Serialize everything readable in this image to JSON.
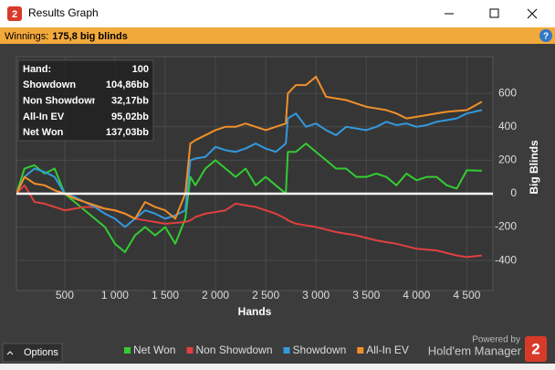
{
  "window": {
    "title": "Results Graph",
    "icon": "2"
  },
  "status": {
    "label": "Winnings:",
    "value": "175,8 big blinds"
  },
  "help": "?",
  "info_box": {
    "rows": [
      [
        "Hand:",
        "100"
      ],
      [
        "Showdown",
        "104,86bb"
      ],
      [
        "Non Showdown",
        "32,17bb"
      ],
      [
        "All-In EV",
        "95,02bb"
      ],
      [
        "Net Won",
        "137,03bb"
      ]
    ]
  },
  "footer": {
    "options": "Options",
    "powered_by": "Powered by",
    "brand": "Hold'em Manager",
    "brand_icon": "2"
  },
  "chart_data": {
    "type": "line",
    "xlabel": "Hands",
    "ylabel": "Big Blinds",
    "xlim": [
      20,
      4760
    ],
    "ylim": [
      -580,
      820
    ],
    "xticks": [
      500,
      {
        "value": 1000,
        "label": "1 000"
      },
      {
        "value": 1500,
        "label": "1 500"
      },
      {
        "value": 2000,
        "label": "2 000"
      },
      {
        "value": 2500,
        "label": "2 500"
      },
      {
        "value": 3000,
        "label": "3 000"
      },
      {
        "value": 3500,
        "label": "3 500"
      },
      {
        "value": 4000,
        "label": "4 000"
      },
      {
        "value": 4500,
        "label": "4 500"
      }
    ],
    "yticks": [
      -400,
      -200,
      0,
      200,
      400,
      600
    ],
    "grid": true,
    "x": [
      20,
      100,
      200,
      300,
      400,
      500,
      600,
      700,
      800,
      900,
      1000,
      1100,
      1200,
      1300,
      1400,
      1500,
      1600,
      1700,
      1750,
      1800,
      1900,
      2000,
      2100,
      2200,
      2300,
      2400,
      2500,
      2600,
      2700,
      2720,
      2800,
      2900,
      3000,
      3100,
      3200,
      3300,
      3400,
      3500,
      3600,
      3700,
      3800,
      3900,
      4000,
      4100,
      4200,
      4300,
      4400,
      4500,
      4650
    ],
    "series": [
      {
        "name": "Net Won",
        "color": "#33cc33",
        "values": [
          0,
          150,
          170,
          120,
          150,
          0,
          -50,
          -100,
          -150,
          -200,
          -300,
          -350,
          -250,
          -200,
          -250,
          -200,
          -300,
          -150,
          100,
          50,
          150,
          200,
          150,
          100,
          150,
          50,
          100,
          50,
          0,
          250,
          250,
          300,
          250,
          200,
          150,
          150,
          100,
          100,
          120,
          100,
          50,
          120,
          80,
          100,
          100,
          50,
          30,
          140,
          137
        ]
      },
      {
        "name": "Non Showdown",
        "color": "#e04040",
        "values": [
          0,
          50,
          -50,
          -60,
          -80,
          -100,
          -90,
          -80,
          -80,
          -90,
          -100,
          -120,
          -150,
          -160,
          -170,
          -180,
          -175,
          -170,
          -160,
          -140,
          -120,
          -110,
          -100,
          -60,
          -70,
          -80,
          -100,
          -120,
          -150,
          -160,
          -180,
          -190,
          -200,
          -215,
          -230,
          -240,
          -250,
          -265,
          -280,
          -290,
          -300,
          -315,
          -330,
          -335,
          -340,
          -355,
          -370,
          -380,
          -370
        ]
      },
      {
        "name": "Showdown",
        "color": "#3399dd",
        "values": [
          0,
          100,
          150,
          130,
          100,
          0,
          -20,
          -50,
          -80,
          -120,
          -150,
          -200,
          -150,
          -100,
          -120,
          -150,
          -130,
          -100,
          200,
          210,
          220,
          280,
          260,
          250,
          270,
          300,
          270,
          250,
          300,
          450,
          480,
          400,
          420,
          380,
          350,
          400,
          390,
          380,
          400,
          430,
          410,
          420,
          400,
          410,
          430,
          440,
          450,
          480,
          500
        ]
      },
      {
        "name": "All-In EV",
        "color": "#f0902a",
        "values": [
          0,
          100,
          60,
          50,
          20,
          0,
          -30,
          -50,
          -70,
          -90,
          -100,
          -120,
          -150,
          -50,
          -80,
          -100,
          -150,
          0,
          300,
          320,
          350,
          380,
          400,
          400,
          420,
          400,
          380,
          400,
          420,
          600,
          650,
          650,
          700,
          580,
          570,
          560,
          540,
          520,
          510,
          500,
          480,
          450,
          460,
          470,
          480,
          490,
          495,
          500,
          550
        ]
      }
    ]
  }
}
